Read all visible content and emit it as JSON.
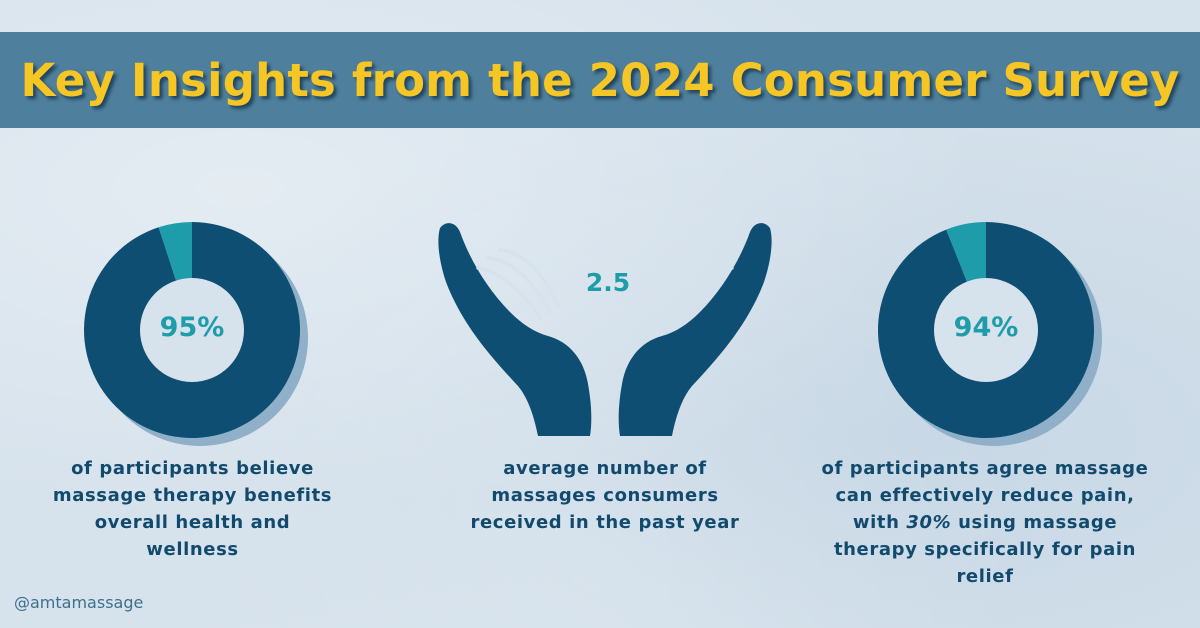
{
  "title": "Key Insights from the 2024 Consumer Survey",
  "handle": "@amtamassage",
  "colors": {
    "banner": "#4e7f9c",
    "title": "#f6c624",
    "primary": "#0e4e72",
    "accent": "#1f9ca9",
    "shadow": "#8fb0c8",
    "text": "#124a6e"
  },
  "stats": [
    {
      "value_label": "95%",
      "caption_lines": [
        "of participants believe",
        "massage therapy benefits",
        "overall health and",
        "wellness"
      ]
    },
    {
      "value_label": "2.5",
      "icon": "open-hands-icon",
      "caption_lines": [
        "average number of",
        "massages consumers",
        "received in the past year"
      ]
    },
    {
      "value_label": "94%",
      "caption_lines": [
        "of participants agree massage",
        "can effectively reduce pain,",
        "with 30% using massage",
        "therapy specifically for pain",
        "relief"
      ]
    }
  ],
  "chart_data": [
    {
      "type": "pie",
      "subtype": "donut",
      "values": [
        95,
        5
      ],
      "labels": [
        "95%",
        ""
      ]
    },
    {
      "type": "pie",
      "subtype": "donut",
      "values": [
        94,
        6
      ],
      "labels": [
        "94%",
        ""
      ]
    }
  ]
}
